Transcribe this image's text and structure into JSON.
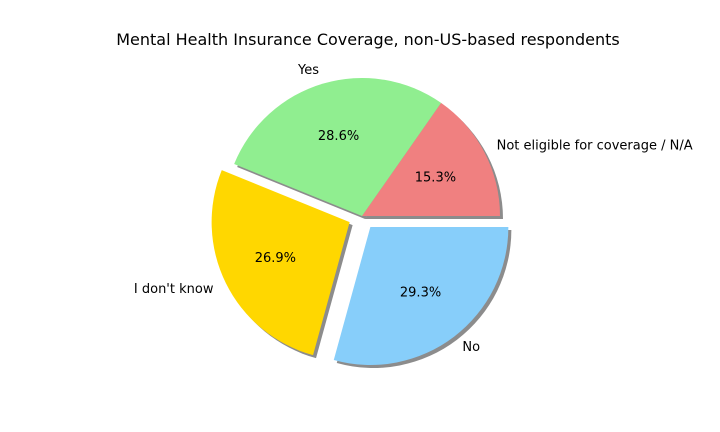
{
  "chart_data": {
    "type": "pie",
    "title": "Mental Health Insurance Coverage, non-US-based respondents",
    "slices": [
      {
        "label": "Not eligible for coverage / N/A",
        "value": 15.3,
        "pct_text": "15.3%",
        "color": "#F08080",
        "exploded": false
      },
      {
        "label": "Yes",
        "value": 28.6,
        "pct_text": "28.6%",
        "color": "#90EE90",
        "exploded": false
      },
      {
        "label": "I don't know",
        "value": 26.9,
        "pct_text": "26.9%",
        "color": "#FFD700",
        "exploded": true
      },
      {
        "label": "No",
        "value": 29.3,
        "pct_text": "29.3%",
        "color": "#87CEFA",
        "exploded": true
      }
    ],
    "start_angle_deg": 0,
    "direction": "counterclockwise",
    "shadow": true
  }
}
